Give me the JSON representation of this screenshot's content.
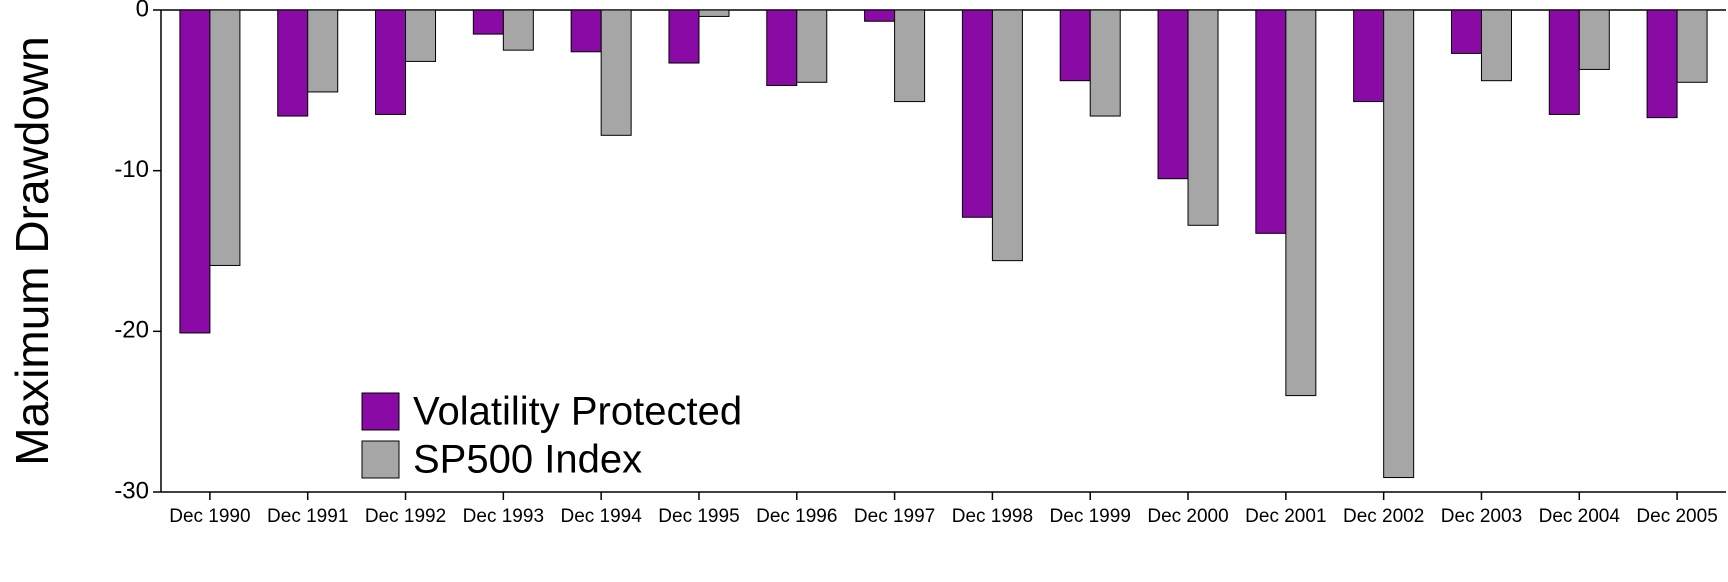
{
  "chart_data": {
    "type": "bar",
    "y_label": "Maximum Drawdown",
    "categories": [
      "Dec 1990",
      "Dec 1991",
      "Dec 1992",
      "Dec 1993",
      "Dec 1994",
      "Dec 1995",
      "Dec 1996",
      "Dec 1997",
      "Dec 1998",
      "Dec 1999",
      "Dec 2000",
      "Dec 2001",
      "Dec 2002",
      "Dec 2003",
      "Dec 2004",
      "Dec 2005"
    ],
    "series": [
      {
        "name": "Volatility Protected",
        "color": "#8a0aa6",
        "values": [
          -20.1,
          -6.6,
          -6.5,
          -1.5,
          -2.6,
          -3.3,
          -4.7,
          -0.7,
          -12.9,
          -4.4,
          -10.5,
          -13.9,
          -5.7,
          -2.7,
          -6.5,
          -6.7
        ]
      },
      {
        "name": "SP500 Index",
        "color": "#a6a6a6",
        "values": [
          -15.9,
          -5.1,
          -3.2,
          -2.5,
          -7.8,
          -0.4,
          -4.5,
          -5.7,
          -15.6,
          -6.6,
          -13.4,
          -24.0,
          -29.1,
          -4.4,
          -3.7,
          -4.5
        ]
      }
    ],
    "ylim": [
      -30,
      0
    ],
    "yticks": [
      -30,
      -20,
      -10,
      0
    ],
    "grid": false
  }
}
